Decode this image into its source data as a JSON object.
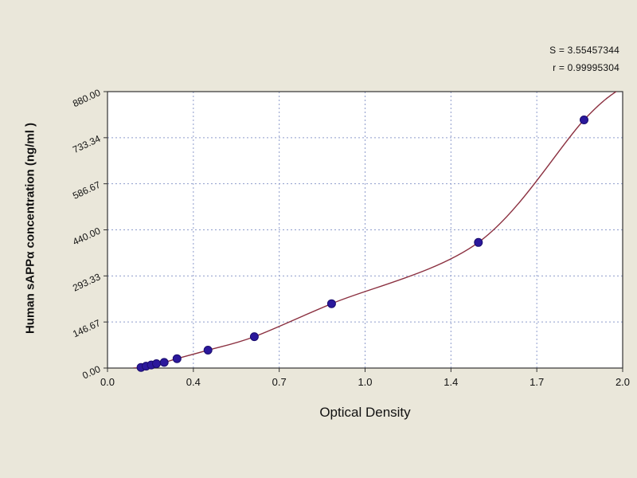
{
  "chart_data": {
    "type": "scatter",
    "title": "",
    "xlabel": "Optical Density",
    "ylabel": "Human sAPPα concentration (ng/ml )",
    "xlim": [
      0.0,
      2.0
    ],
    "ylim": [
      0.0,
      880.0
    ],
    "x_tick_labels": [
      "0.0",
      "0.4",
      "0.7",
      "1.0",
      "1.4",
      "1.7",
      "2.0"
    ],
    "y_tick_labels": [
      "0.00",
      "146.67",
      "293.33",
      "440.00",
      "586.67",
      "733.34",
      "880.00"
    ],
    "grid": "dashed",
    "legend": "none",
    "annotations": {
      "s_value": "S = 3.55457344",
      "r_value": "r = 0.99995304"
    },
    "points": [
      {
        "x": 0.13,
        "y": 2
      },
      {
        "x": 0.15,
        "y": 6
      },
      {
        "x": 0.17,
        "y": 10
      },
      {
        "x": 0.19,
        "y": 14
      },
      {
        "x": 0.22,
        "y": 18
      },
      {
        "x": 0.27,
        "y": 30
      },
      {
        "x": 0.39,
        "y": 57
      },
      {
        "x": 0.57,
        "y": 100
      },
      {
        "x": 0.87,
        "y": 205
      },
      {
        "x": 1.44,
        "y": 400
      },
      {
        "x": 1.85,
        "y": 790
      }
    ],
    "curve": {
      "type": "fitted",
      "start": {
        "x": 0.1,
        "y": 0
      },
      "end": {
        "x": 2.01,
        "y": 900
      },
      "color": "#8b3040"
    },
    "marker_color": "#2b189c",
    "marker_stroke": "#1a0d6e"
  },
  "colors": {
    "background": "#eae7da",
    "plot_background": "#ffffff",
    "grid": "#8e9ccc",
    "axis": "#333333",
    "text": "#111111"
  }
}
